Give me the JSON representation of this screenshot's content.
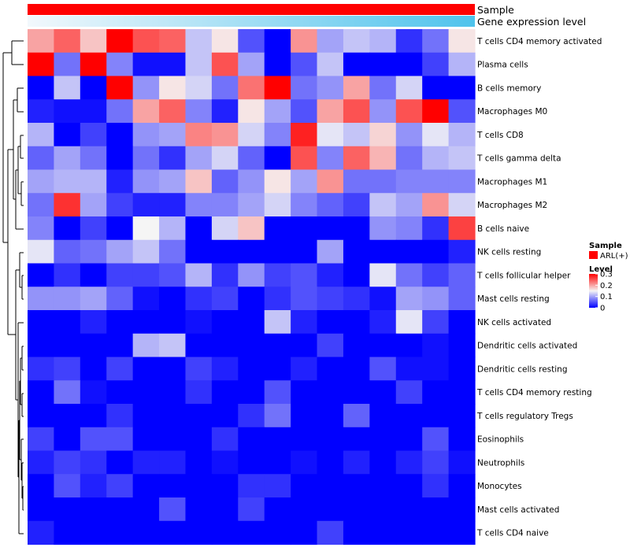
{
  "chart_data": {
    "type": "heatmap",
    "annotation_rows": [
      {
        "label": "Sample",
        "color": "#ff0000"
      },
      {
        "label": "Gene expression level",
        "gradient_from": "#f2f8fc",
        "gradient_to": "#4fc3ec"
      }
    ],
    "row_labels": [
      "T cells CD4 memory activated",
      "Plasma cells",
      "B cells memory",
      "Macrophages M0",
      "T cells CD8",
      "T cells gamma delta",
      "Macrophages M1",
      "Macrophages M2",
      "B cells naive",
      "NK cells resting",
      "T cells follicular helper",
      "Mast cells resting",
      "NK cells activated",
      "Dendritic cells activated",
      "Dendritic cells resting",
      "T cells CD4 memory resting",
      "T cells regulatory  Tregs",
      "Eosinophils",
      "Neutrophils",
      "Monocytes",
      "Mast cells activated",
      "T cells CD4 naive"
    ],
    "values": [
      [
        0.2,
        0.24,
        0.18,
        0.3,
        0.25,
        0.24,
        0.12,
        0.16,
        0.05,
        0.0,
        0.21,
        0.1,
        0.12,
        0.11,
        0.03,
        0.07,
        0.16
      ],
      [
        0.3,
        0.07,
        0.3,
        0.08,
        0.01,
        0.01,
        0.12,
        0.25,
        0.1,
        0.0,
        0.05,
        0.12,
        0.0,
        0.0,
        0.0,
        0.04,
        0.11
      ],
      [
        0.0,
        0.12,
        0.0,
        0.3,
        0.09,
        0.16,
        0.13,
        0.07,
        0.23,
        0.3,
        0.07,
        0.09,
        0.2,
        0.07,
        0.13,
        0.0,
        0.0
      ],
      [
        0.02,
        0.01,
        0.01,
        0.07,
        0.2,
        0.24,
        0.08,
        0.02,
        0.16,
        0.1,
        0.05,
        0.2,
        0.25,
        0.09,
        0.25,
        0.3,
        0.05
      ],
      [
        0.11,
        0.0,
        0.04,
        0.0,
        0.09,
        0.1,
        0.22,
        0.21,
        0.13,
        0.08,
        0.28,
        0.14,
        0.12,
        0.17,
        0.09,
        0.14,
        0.11
      ],
      [
        0.06,
        0.1,
        0.07,
        0.0,
        0.07,
        0.03,
        0.1,
        0.13,
        0.06,
        0.0,
        0.25,
        0.08,
        0.24,
        0.19,
        0.07,
        0.11,
        0.12
      ],
      [
        0.1,
        0.11,
        0.11,
        0.02,
        0.09,
        0.1,
        0.18,
        0.06,
        0.09,
        0.16,
        0.1,
        0.21,
        0.07,
        0.07,
        0.08,
        0.08,
        0.08
      ],
      [
        0.07,
        0.27,
        0.1,
        0.04,
        0.02,
        0.02,
        0.08,
        0.08,
        0.1,
        0.13,
        0.08,
        0.06,
        0.04,
        0.12,
        0.1,
        0.21,
        0.13
      ],
      [
        0.08,
        0.0,
        0.04,
        0.0,
        0.15,
        0.11,
        0.0,
        0.13,
        0.18,
        0.0,
        0.0,
        0.0,
        0.0,
        0.09,
        0.08,
        0.03,
        0.26
      ],
      [
        0.14,
        0.06,
        0.07,
        0.1,
        0.12,
        0.07,
        0.0,
        0.0,
        0.0,
        0.0,
        0.0,
        0.1,
        0.0,
        0.0,
        0.0,
        0.0,
        0.02
      ],
      [
        0.0,
        0.03,
        0.0,
        0.04,
        0.04,
        0.05,
        0.11,
        0.03,
        0.09,
        0.04,
        0.05,
        0.02,
        0.0,
        0.14,
        0.07,
        0.04,
        0.06
      ],
      [
        0.09,
        0.09,
        0.1,
        0.06,
        0.01,
        0.0,
        0.03,
        0.04,
        0.0,
        0.03,
        0.05,
        0.04,
        0.03,
        0.01,
        0.1,
        0.09,
        0.06
      ],
      [
        0.0,
        0.0,
        0.02,
        0.0,
        0.0,
        0.0,
        0.01,
        0.0,
        0.0,
        0.12,
        0.02,
        0.0,
        0.0,
        0.02,
        0.14,
        0.04,
        0.0
      ],
      [
        0.0,
        0.0,
        0.0,
        0.0,
        0.11,
        0.12,
        0.0,
        0.0,
        0.0,
        0.0,
        0.0,
        0.04,
        0.0,
        0.0,
        0.0,
        0.01,
        0.0
      ],
      [
        0.03,
        0.04,
        0.0,
        0.04,
        0.0,
        0.0,
        0.04,
        0.02,
        0.0,
        0.0,
        0.02,
        0.0,
        0.0,
        0.05,
        0.01,
        0.01,
        0.0
      ],
      [
        0.0,
        0.07,
        0.01,
        0.0,
        0.0,
        0.0,
        0.03,
        0.0,
        0.0,
        0.05,
        0.0,
        0.0,
        0.0,
        0.0,
        0.04,
        0.0,
        0.0
      ],
      [
        0.0,
        0.0,
        0.0,
        0.03,
        0.0,
        0.0,
        0.0,
        0.0,
        0.03,
        0.07,
        0.0,
        0.0,
        0.06,
        0.0,
        0.0,
        0.0,
        0.0
      ],
      [
        0.04,
        0.0,
        0.05,
        0.05,
        0.0,
        0.0,
        0.0,
        0.03,
        0.0,
        0.0,
        0.0,
        0.0,
        0.0,
        0.0,
        0.0,
        0.05,
        0.0
      ],
      [
        0.02,
        0.04,
        0.03,
        0.0,
        0.02,
        0.02,
        0.0,
        0.01,
        0.0,
        0.0,
        0.01,
        0.0,
        0.02,
        0.0,
        0.02,
        0.04,
        0.01
      ],
      [
        0.0,
        0.05,
        0.02,
        0.04,
        0.0,
        0.0,
        0.0,
        0.0,
        0.03,
        0.03,
        0.0,
        0.0,
        0.0,
        0.0,
        0.0,
        0.03,
        0.0
      ],
      [
        0.0,
        0.0,
        0.0,
        0.0,
        0.0,
        0.05,
        0.0,
        0.0,
        0.04,
        0.0,
        0.0,
        0.0,
        0.0,
        0.0,
        0.0,
        0.0,
        0.0
      ],
      [
        0.02,
        0.0,
        0.0,
        0.0,
        0.0,
        0.0,
        0.0,
        0.0,
        0.0,
        0.0,
        0.0,
        0.04,
        0.0,
        0.0,
        0.0,
        0.0,
        0.0
      ]
    ],
    "color_scale": {
      "min": 0,
      "max": 0.3,
      "low": "#0000ff",
      "mid": "#f5f5f5",
      "high": "#ff0000",
      "mid_value": 0.15
    },
    "legend": {
      "sample_title": "Sample",
      "sample_entry": "ARL(+)",
      "sample_color": "#ff0000",
      "level_title": "Level",
      "level_ticks": [
        "0.3",
        "0.2",
        "0.1",
        "0"
      ],
      "level_tick_values": [
        0.3,
        0.2,
        0.1,
        0
      ]
    }
  }
}
